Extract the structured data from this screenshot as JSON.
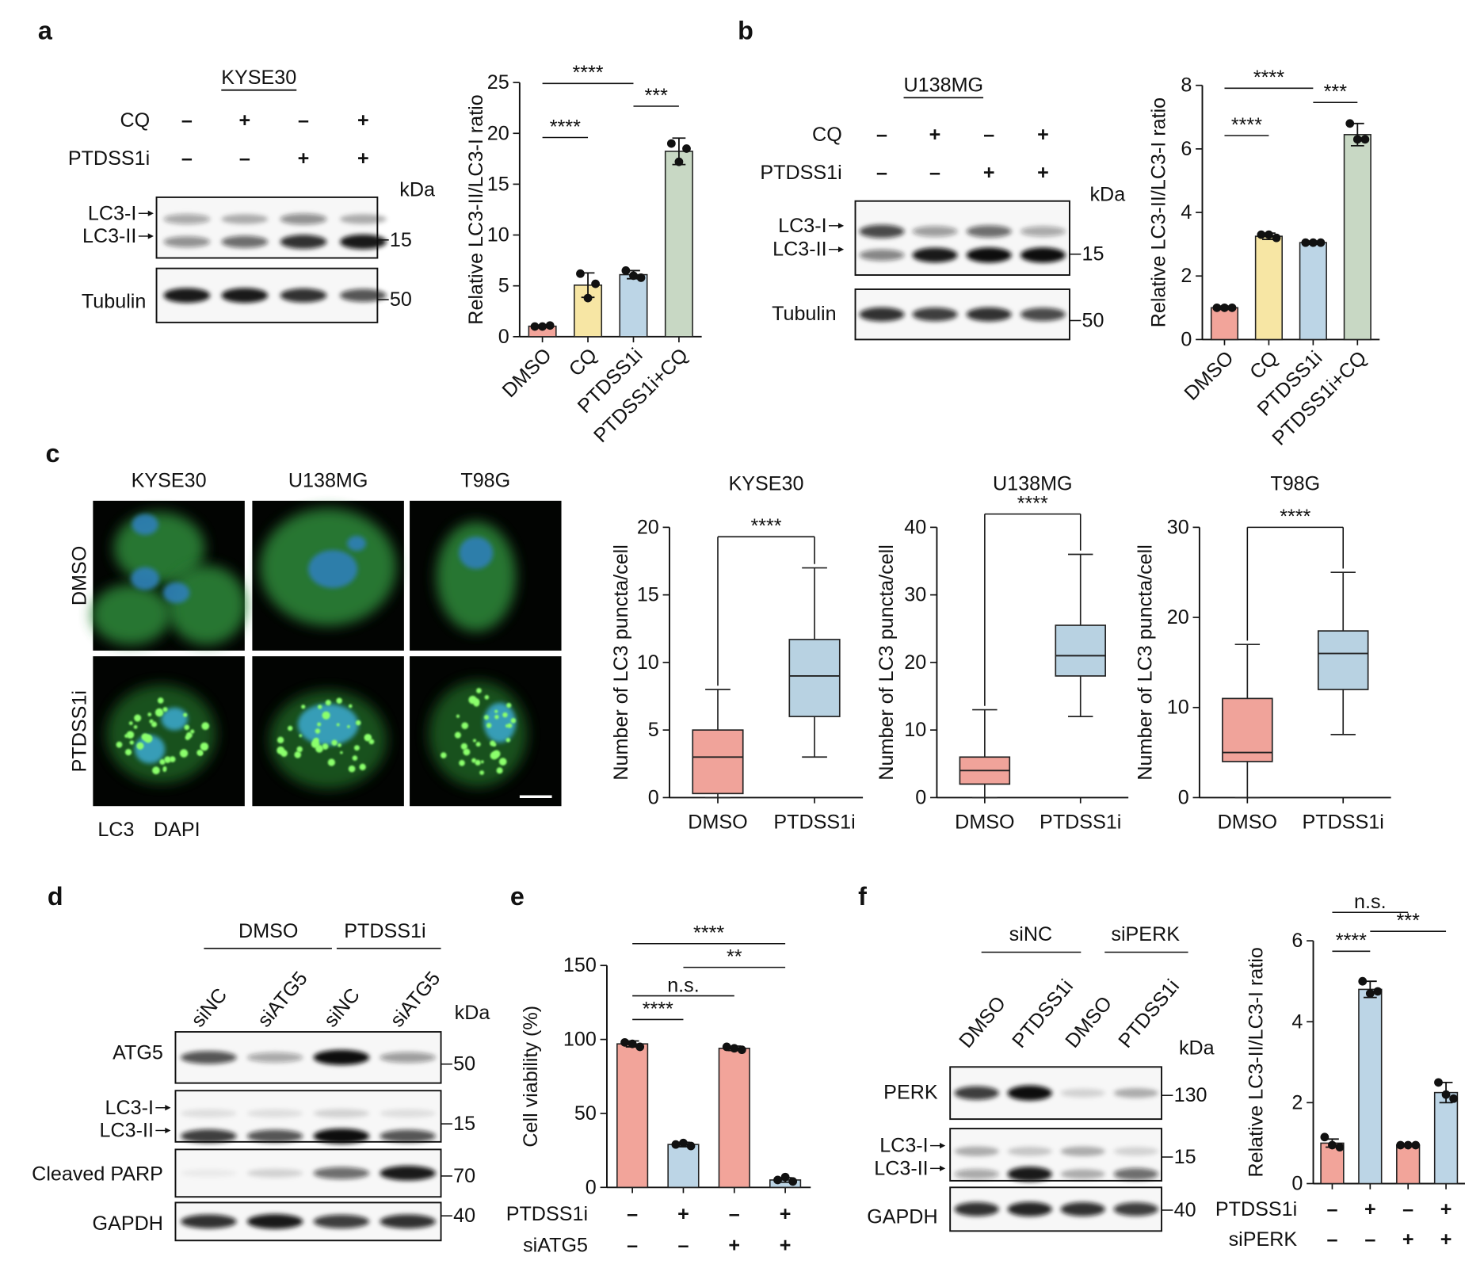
{
  "panel_labels": [
    "a",
    "b",
    "c",
    "d",
    "e",
    "f"
  ],
  "blots": [
    {
      "title": "KYSE30",
      "conditions": [
        {
          "label": "CQ",
          "marks": [
            "–",
            "+",
            "–",
            "+"
          ]
        },
        {
          "label": "PTDSS1i",
          "marks": [
            "–",
            "–",
            "+",
            "+"
          ]
        }
      ],
      "unit": "kDa",
      "rows": [
        {
          "labels": [
            "LC3-I",
            "LC3-II"
          ],
          "marker": "15"
        },
        {
          "labels": [
            "Tubulin"
          ],
          "marker": "50"
        }
      ]
    },
    {
      "title": "U138MG",
      "conditions": [
        {
          "label": "CQ",
          "marks": [
            "–",
            "+",
            "–",
            "+"
          ]
        },
        {
          "label": "PTDSS1i",
          "marks": [
            "–",
            "–",
            "+",
            "+"
          ]
        }
      ],
      "unit": "kDa",
      "rows": [
        {
          "labels": [
            "LC3-I",
            "LC3-II"
          ],
          "marker": "15"
        },
        {
          "labels": [
            "Tubulin"
          ],
          "marker": "50"
        }
      ]
    },
    {
      "groups": [
        "DMSO",
        "PTDSS1i"
      ],
      "lanes": [
        "siNC",
        "siATG5",
        "siNC",
        "siATG5"
      ],
      "unit": "kDa",
      "rows": [
        {
          "labels": [
            "ATG5"
          ],
          "marker": "50"
        },
        {
          "labels": [
            "LC3-I",
            "LC3-II"
          ],
          "marker": "15"
        },
        {
          "labels": [
            "Cleaved PARP"
          ],
          "marker": "70"
        },
        {
          "labels": [
            "GAPDH"
          ],
          "marker": "40"
        }
      ]
    },
    {
      "groups": [
        "siNC",
        "siPERK"
      ],
      "lanes": [
        "DMSO",
        "PTDSS1i",
        "DMSO",
        "PTDSS1i"
      ],
      "unit": "kDa",
      "rows": [
        {
          "labels": [
            "PERK"
          ],
          "marker": "130"
        },
        {
          "labels": [
            "LC3-I",
            "LC3-II"
          ],
          "marker": "15"
        },
        {
          "labels": [
            "GAPDH"
          ],
          "marker": "40"
        }
      ]
    }
  ],
  "microscopy": {
    "columns": [
      "KYSE30",
      "U138MG",
      "T98G"
    ],
    "rows": [
      "DMSO",
      "PTDSS1i"
    ],
    "stains": [
      {
        "label": "LC3",
        "color": "#3cb43c"
      },
      {
        "label": "DAPI",
        "color": "#2f8fd8"
      }
    ]
  },
  "chart_data": [
    {
      "type": "bar",
      "ylabel": "Relative LC3-II/LC3-I ratio",
      "categories": [
        "DMSO",
        "CQ",
        "PTDSS1i",
        "PTDSS1i+CQ"
      ],
      "values": [
        1.03,
        5.07,
        6.1,
        18.23
      ],
      "errors": [
        0.1,
        1.2,
        0.4,
        1.3
      ],
      "points": [
        [
          1.0,
          1.1,
          1.0
        ],
        [
          6.2,
          5.2,
          3.8
        ],
        [
          6.5,
          5.8,
          6.0
        ],
        [
          19.0,
          18.5,
          17.2
        ]
      ],
      "colors": [
        "#f2a49a",
        "#f7e6a4",
        "#bcd5e6",
        "#c8d8c4"
      ],
      "ylim": [
        0,
        25
      ],
      "yticks": [
        0,
        5,
        10,
        15,
        20,
        25
      ],
      "comparisons": [
        {
          "bars": [
            0,
            2
          ],
          "label": "****"
        },
        {
          "bars": [
            2,
            3
          ],
          "label": "***"
        },
        {
          "bars": [
            0,
            1
          ],
          "label": "****"
        }
      ]
    },
    {
      "type": "bar",
      "ylabel": "Relative LC3-II/LC3-I ratio",
      "categories": [
        "DMSO",
        "CQ",
        "PTDSS1i",
        "PTDSS1i+CQ"
      ],
      "values": [
        1.0,
        3.25,
        3.05,
        6.45
      ],
      "errors": [
        0.05,
        0.1,
        0.05,
        0.35
      ],
      "points": [
        [
          1.0,
          1.0,
          1.0
        ],
        [
          3.3,
          3.2,
          3.3
        ],
        [
          3.05,
          3.05,
          3.05
        ],
        [
          6.8,
          6.3,
          6.3
        ]
      ],
      "colors": [
        "#f2a49a",
        "#f7e6a4",
        "#bcd5e6",
        "#c8d8c4"
      ],
      "ylim": [
        0,
        8
      ],
      "yticks": [
        0,
        2,
        4,
        6,
        8
      ],
      "comparisons": [
        {
          "bars": [
            0,
            2
          ],
          "label": "****"
        },
        {
          "bars": [
            2,
            3
          ],
          "label": "***"
        },
        {
          "bars": [
            0,
            1
          ],
          "label": "****"
        }
      ]
    },
    {
      "type": "box",
      "title": "KYSE30",
      "ylabel": "Number of  LC3 puncta/cell",
      "categories": [
        "DMSO",
        "PTDSS1i"
      ],
      "boxes": [
        {
          "min": 0,
          "q1": 0.3,
          "median": 3,
          "q3": 5,
          "max": 8
        },
        {
          "min": 3,
          "q1": 6,
          "median": 9,
          "q3": 11.7,
          "max": 17
        }
      ],
      "colors": [
        "#f0a39a",
        "#b8d2e2"
      ],
      "ylim": [
        0,
        20
      ],
      "yticks": [
        0,
        5,
        10,
        15,
        20
      ],
      "comparisons": [
        {
          "bars": [
            0,
            1
          ],
          "label": "****"
        }
      ]
    },
    {
      "type": "box",
      "title": "U138MG",
      "ylabel": "Number of  LC3 puncta/cell",
      "categories": [
        "DMSO",
        "PTDSS1i"
      ],
      "boxes": [
        {
          "min": 0,
          "q1": 2,
          "median": 4,
          "q3": 6,
          "max": 13
        },
        {
          "min": 12,
          "q1": 18,
          "median": 21,
          "q3": 25.5,
          "max": 36
        }
      ],
      "colors": [
        "#f0a39a",
        "#b8d2e2"
      ],
      "ylim": [
        0,
        40
      ],
      "yticks": [
        0,
        10,
        20,
        30,
        40
      ],
      "comparisons": [
        {
          "bars": [
            0,
            1
          ],
          "label": "****"
        }
      ]
    },
    {
      "type": "box",
      "title": "T98G",
      "ylabel": "Number of  LC3 puncta/cell",
      "categories": [
        "DMSO",
        "PTDSS1i"
      ],
      "boxes": [
        {
          "min": 0,
          "q1": 4,
          "median": 5,
          "q3": 11,
          "max": 17
        },
        {
          "min": 7,
          "q1": 12,
          "median": 16,
          "q3": 18.5,
          "max": 25
        }
      ],
      "colors": [
        "#f0a39a",
        "#b8d2e2"
      ],
      "ylim": [
        0,
        30
      ],
      "yticks": [
        0,
        10,
        20,
        30
      ],
      "comparisons": [
        {
          "bars": [
            0,
            1
          ],
          "label": "****"
        }
      ]
    },
    {
      "type": "bar",
      "ylabel": "Cell viability (%)",
      "values": [
        97,
        29,
        94,
        5
      ],
      "errors": [
        2,
        1.5,
        1.5,
        1.5
      ],
      "points": [
        [
          98,
          95,
          97
        ],
        [
          29,
          28,
          30
        ],
        [
          95,
          93,
          94
        ],
        [
          5,
          4,
          7
        ]
      ],
      "colors": [
        "#f2a49a",
        "#bcd5e6",
        "#f2a49a",
        "#bcd5e6"
      ],
      "ylim": [
        0,
        150
      ],
      "yticks": [
        0,
        50,
        100,
        150
      ],
      "conditions": [
        {
          "label": "PTDSS1i",
          "marks": [
            "–",
            "+",
            "–",
            "+"
          ]
        },
        {
          "label": "siATG5",
          "marks": [
            "–",
            "–",
            "+",
            "+"
          ]
        }
      ],
      "comparisons": [
        {
          "bars": [
            0,
            3
          ],
          "label": "****"
        },
        {
          "bars": [
            1,
            3
          ],
          "label": "**"
        },
        {
          "bars": [
            0,
            2
          ],
          "label": "n.s."
        },
        {
          "bars": [
            0,
            1
          ],
          "label": "****"
        }
      ]
    },
    {
      "type": "bar",
      "ylabel": "Relative LC3-II/LC3-I ratio",
      "values": [
        1.0,
        4.8,
        0.95,
        2.25
      ],
      "errors": [
        0.1,
        0.2,
        0.02,
        0.25
      ],
      "points": [
        [
          1.15,
          0.9,
          0.95
        ],
        [
          5.0,
          4.75,
          4.7
        ],
        [
          0.95,
          0.95,
          0.95
        ],
        [
          2.5,
          2.1,
          2.2
        ]
      ],
      "colors": [
        "#f2a49a",
        "#bcd5e6",
        "#f2a49a",
        "#bcd5e6"
      ],
      "ylim": [
        0,
        6
      ],
      "yticks": [
        0,
        2,
        4,
        6
      ],
      "conditions": [
        {
          "label": "PTDSS1i",
          "marks": [
            "–",
            "+",
            "–",
            "+"
          ]
        },
        {
          "label": "siPERK",
          "marks": [
            "–",
            "–",
            "+",
            "+"
          ]
        }
      ],
      "comparisons": [
        {
          "bars": [
            0,
            2
          ],
          "label": "n.s."
        },
        {
          "bars": [
            1,
            3
          ],
          "label": "***"
        },
        {
          "bars": [
            0,
            1
          ],
          "label": "****"
        }
      ]
    }
  ]
}
